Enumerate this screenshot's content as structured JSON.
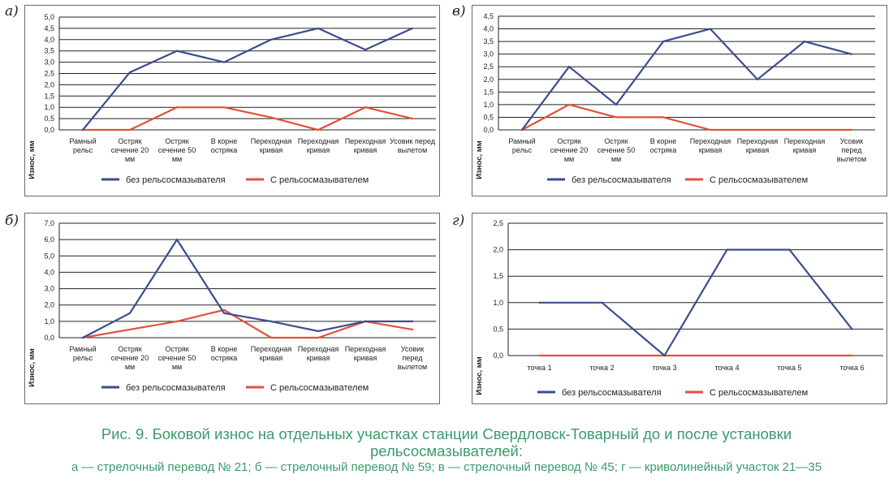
{
  "colors": {
    "series_blue": "#3b4e8c",
    "series_red": "#e2513c",
    "grid": "#222222",
    "caption": "#3b9a6c"
  },
  "chart_data": [
    {
      "id": "a",
      "letter": "а)",
      "type": "line",
      "categories": [
        [
          "Рамный",
          "рельс"
        ],
        [
          "Остряк",
          "сечение 20",
          "мм"
        ],
        [
          "Остряк",
          "сечение 50",
          "мм"
        ],
        [
          "В корне",
          "остряка"
        ],
        [
          "Переходная",
          "кривая"
        ],
        [
          "Переходная",
          "кривая"
        ],
        [
          "Переходная",
          "кривая"
        ],
        [
          "Усовик перед",
          "вылетом"
        ]
      ],
      "series": [
        {
          "name": "без рельсосмазывателя",
          "color": "#3b4e8c",
          "values": [
            0.0,
            2.55,
            3.5,
            3.0,
            4.0,
            4.5,
            3.55,
            4.5
          ]
        },
        {
          "name": "С рельсосмазывателем",
          "color": "#e2513c",
          "values": [
            0.0,
            0.0,
            1.0,
            1.0,
            0.55,
            0.0,
            1.0,
            0.5
          ]
        }
      ],
      "ylim": [
        0,
        5
      ],
      "yticks": [
        0,
        0.5,
        1,
        1.5,
        2,
        2.5,
        3,
        3.5,
        4,
        4.5,
        5
      ],
      "ytick_labels": [
        "0,0",
        "0,5",
        "1,0",
        "1,5",
        "2,0",
        "2,5",
        "3,0",
        "3,5",
        "4,0",
        "4,5",
        "5,0"
      ],
      "ylabel": "Износ, мм",
      "xlabel": "",
      "grid": true,
      "legend": "bottom"
    },
    {
      "id": "v",
      "letter": "в)",
      "type": "line",
      "categories": [
        [
          "Рамный",
          "рельс"
        ],
        [
          "Остряк",
          "сечение 20",
          "мм"
        ],
        [
          "Остряк",
          "сечение 50",
          "мм"
        ],
        [
          "В корне",
          "остряка"
        ],
        [
          "Переходная",
          "кривая"
        ],
        [
          "Переходная",
          "кривая"
        ],
        [
          "Переходная",
          "кривая"
        ],
        [
          "Усовик",
          "перед",
          "вылетом"
        ]
      ],
      "series": [
        {
          "name": "без рельсосмазывателя",
          "color": "#3b4e8c",
          "values": [
            0.0,
            2.5,
            1.0,
            3.5,
            4.0,
            2.0,
            3.5,
            3.0
          ]
        },
        {
          "name": "С рельсосмазывателем",
          "color": "#e2513c",
          "values": [
            0.0,
            1.0,
            0.5,
            0.5,
            0.0,
            0.0,
            0.0,
            0.0
          ]
        }
      ],
      "ylim": [
        0,
        4.5
      ],
      "yticks": [
        0,
        0.5,
        1,
        1.5,
        2,
        2.5,
        3,
        3.5,
        4,
        4.5
      ],
      "ytick_labels": [
        "0,0",
        "0,5",
        "1,0",
        "1,5",
        "2,0",
        "2,5",
        "3,0",
        "3,5",
        "4,0",
        "4,5"
      ],
      "ylabel": "Износ, мм",
      "xlabel": "",
      "grid": true,
      "legend": "bottom"
    },
    {
      "id": "b",
      "letter": "б)",
      "type": "line",
      "categories": [
        [
          "Рамный",
          "рельс"
        ],
        [
          "Остряк",
          "сечение 20",
          "мм"
        ],
        [
          "Остряк",
          "сечение 50",
          "мм"
        ],
        [
          "В корне",
          "остряка"
        ],
        [
          "Переходная",
          "кривая"
        ],
        [
          "Переходная",
          "кривая"
        ],
        [
          "Переходная",
          "кривая"
        ],
        [
          "Усовик",
          "перед",
          "вылетом"
        ]
      ],
      "series": [
        {
          "name": "без рельсосмазывателя",
          "color": "#3b4e8c",
          "values": [
            0.0,
            1.5,
            6.0,
            1.5,
            1.0,
            0.4,
            1.0,
            1.0
          ]
        },
        {
          "name": "С рельсосмазывателем",
          "color": "#e2513c",
          "values": [
            0.0,
            0.5,
            1.0,
            1.7,
            0.0,
            0.0,
            1.0,
            0.5
          ]
        }
      ],
      "ylim": [
        0,
        7
      ],
      "yticks": [
        0,
        1,
        2,
        3,
        4,
        5,
        6,
        7
      ],
      "ytick_labels": [
        "0,0",
        "1,0",
        "2,0",
        "3,0",
        "4,0",
        "5,0",
        "6,0",
        "7,0"
      ],
      "ylabel": "Износ, мм",
      "xlabel": "",
      "grid": true,
      "legend": "bottom"
    },
    {
      "id": "g",
      "letter": "г)",
      "type": "line",
      "categories": [
        [
          "точка 1"
        ],
        [
          "точка 2"
        ],
        [
          "точка 3"
        ],
        [
          "точка 4"
        ],
        [
          "точка 5"
        ],
        [
          "точка 6"
        ]
      ],
      "series": [
        {
          "name": "без рельсосмазывателя",
          "color": "#3b4e8c",
          "values": [
            1.0,
            1.0,
            0.0,
            2.0,
            2.0,
            0.5
          ]
        },
        {
          "name": "С рельсосмазывателем",
          "color": "#e2513c",
          "values": [
            0.0,
            0.0,
            0.0,
            0.0,
            0.0,
            0.0
          ]
        }
      ],
      "ylim": [
        0,
        2.5
      ],
      "yticks": [
        0,
        0.5,
        1,
        1.5,
        2,
        2.5
      ],
      "ytick_labels": [
        "0,0",
        "0,5",
        "1,0",
        "1,5",
        "2,0",
        "2,5"
      ],
      "ylabel": "Износ, мм",
      "xlabel": "",
      "grid": true,
      "legend": "bottom"
    }
  ],
  "caption": {
    "title": "Рис. 9. Боковой износ на отдельных участках станции Свердловск-Товарный до и после установки рельсосмазывателей:",
    "subtitle": "а — стрелочный перевод № 21; б — стрелочный перевод № 59; в — стрелочный перевод № 45; г — криволинейный участок 21—35"
  }
}
